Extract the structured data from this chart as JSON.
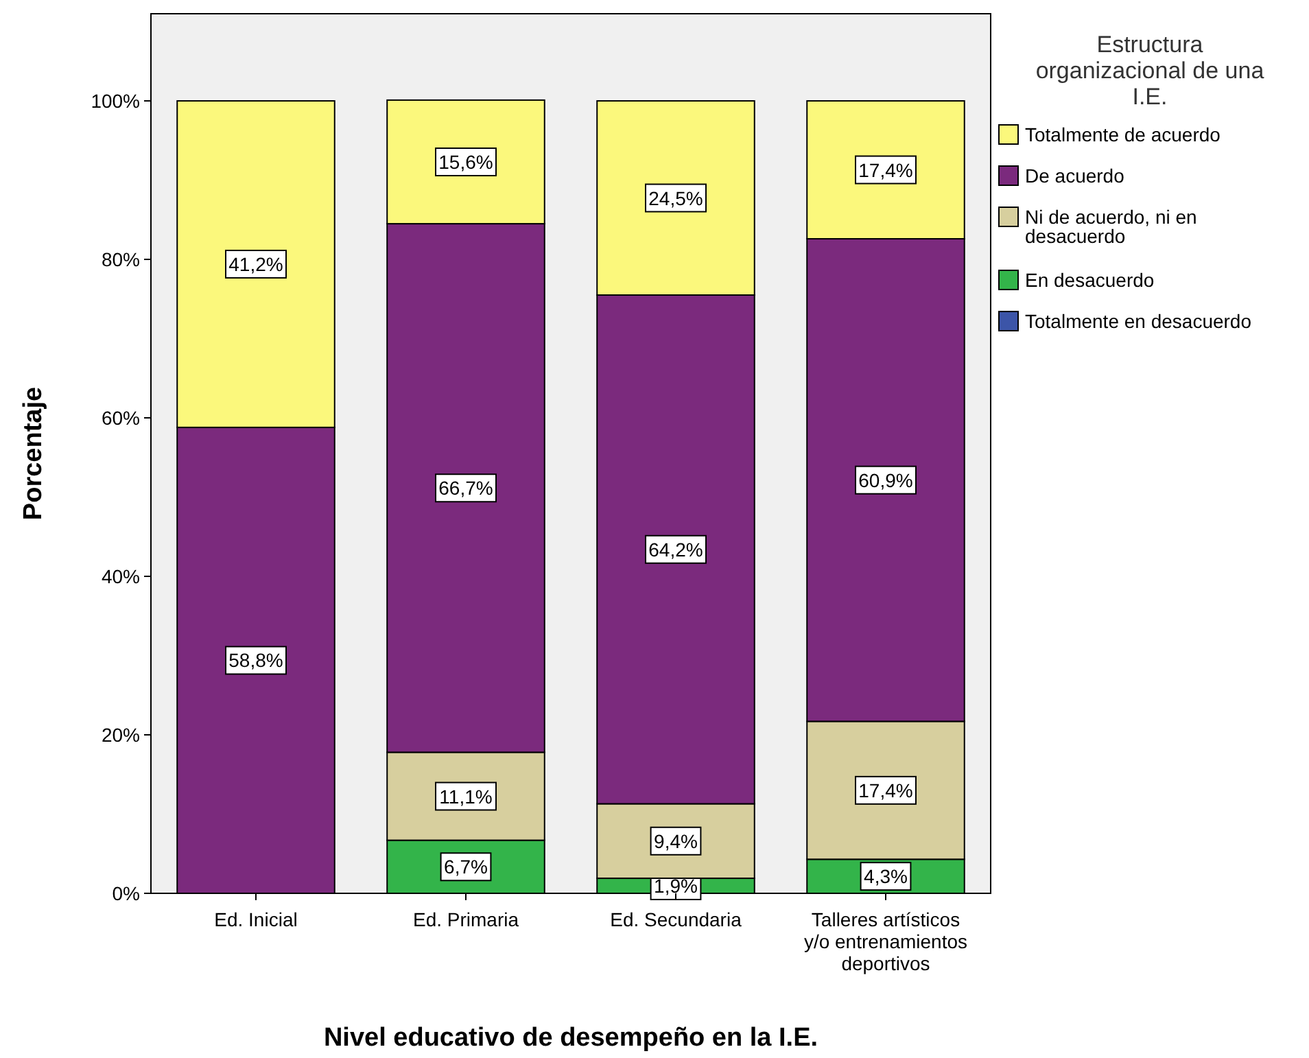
{
  "chart_data": {
    "type": "bar",
    "stacked": true,
    "xlabel": "Nivel educativo de desempeño en la I.E.",
    "ylabel": "Porcentaje",
    "legend_title": "Estructura organizacional de una I.E.",
    "legend": "right",
    "grid": false,
    "categories": [
      "Ed. Inicial",
      "Ed. Primaria",
      "Ed. Secundaria",
      "Talleres artísticos y/o entrenamientos deportivos"
    ],
    "ylim": [
      0,
      111
    ],
    "yticks": [
      {
        "value": 0,
        "label": "0%"
      },
      {
        "value": 20,
        "label": "20%"
      },
      {
        "value": 40,
        "label": "40%"
      },
      {
        "value": 60,
        "label": "60%"
      },
      {
        "value": 80,
        "label": "80%"
      },
      {
        "value": 100,
        "label": "100%"
      }
    ],
    "series": [
      {
        "name": "Totalmente en desacuerdo",
        "color": "#3c55a8",
        "values": [
          0,
          0,
          0,
          0
        ],
        "value_labels": [
          null,
          null,
          null,
          null
        ]
      },
      {
        "name": "En desacuerdo",
        "color": "#33b44a",
        "values": [
          0,
          6.7,
          1.9,
          4.3
        ],
        "value_labels": [
          null,
          "6,7%",
          "1,9%",
          "4,3%"
        ]
      },
      {
        "name": "Ni de acuerdo, ni en desacuerdo",
        "color": "#d7cf9e",
        "values": [
          0,
          11.1,
          9.4,
          17.4
        ],
        "value_labels": [
          null,
          "11,1%",
          "9,4%",
          "17,4%"
        ]
      },
      {
        "name": "De acuerdo",
        "color": "#7b2a7d",
        "values": [
          58.8,
          66.7,
          64.2,
          60.9
        ],
        "value_labels": [
          "58,8%",
          "66,7%",
          "64,2%",
          "60,9%"
        ]
      },
      {
        "name": "Totalmente de acuerdo",
        "color": "#fbf87c",
        "values": [
          41.2,
          15.6,
          24.5,
          17.4
        ],
        "value_labels": [
          "41,2%",
          "15,6%",
          "24,5%",
          "17,4%"
        ]
      }
    ]
  }
}
